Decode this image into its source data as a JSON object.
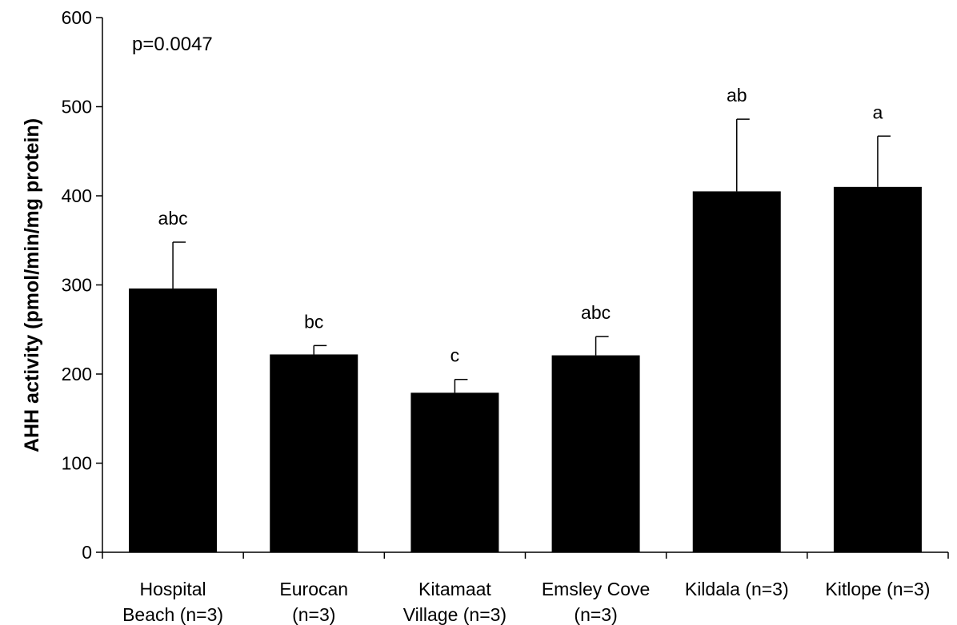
{
  "chart_data": {
    "type": "bar",
    "title": "",
    "xlabel": "",
    "ylabel": "AHH activity (pmol/min/mg protein)",
    "ylim": [
      0,
      600
    ],
    "yticks": [
      0,
      100,
      200,
      300,
      400,
      500,
      600
    ],
    "grid": false,
    "annotation": "p=0.0047",
    "categories": [
      [
        "Hospital",
        "Beach (n=3)"
      ],
      [
        "Eurocan",
        "(n=3)"
      ],
      [
        "Kitamaat",
        "Village (n=3)"
      ],
      [
        "Emsley Cove",
        "(n=3)"
      ],
      [
        "Kildala (n=3)"
      ],
      [
        "Kitlope (n=3)"
      ]
    ],
    "values": [
      296,
      222,
      179,
      221,
      405,
      410
    ],
    "error_upper": [
      52,
      10,
      15,
      21,
      81,
      57
    ],
    "significance_labels": [
      "abc",
      "bc",
      "c",
      "abc",
      "ab",
      "a"
    ],
    "bar_color": "#000000"
  }
}
